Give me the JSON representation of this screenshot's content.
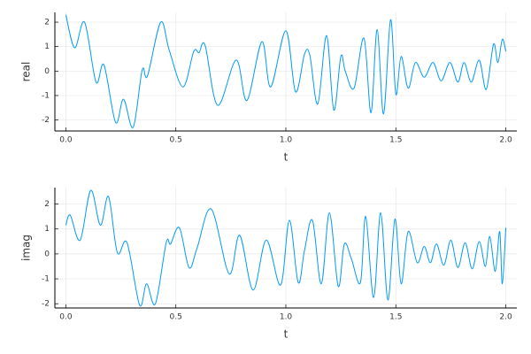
{
  "chart_data": [
    {
      "type": "line",
      "xlabel": "t",
      "ylabel": "real",
      "color": "#009af9",
      "x": [
        0,
        0.04,
        0.085,
        0.137,
        0.173,
        0.226,
        0.262,
        0.306,
        0.347,
        0.371,
        0.431,
        0.47,
        0.532,
        0.581,
        0.605,
        0.633,
        0.69,
        0.774,
        0.823,
        0.891,
        0.931,
        1.0,
        1.044,
        1.085,
        1.109,
        1.145,
        1.185,
        1.218,
        1.25,
        1.27,
        1.31,
        1.355,
        1.387,
        1.415,
        1.444,
        1.476,
        1.5,
        1.524,
        1.556,
        1.589,
        1.629,
        1.669,
        1.706,
        1.746,
        1.782,
        1.81,
        1.843,
        1.879,
        1.911,
        1.944,
        1.964,
        1.984,
        2.0
      ],
      "values": [
        2.3,
        0.95,
        2.0,
        -0.45,
        0.25,
        -2.1,
        -1.15,
        -2.3,
        0.05,
        -0.2,
        2.0,
        0.85,
        -0.65,
        0.8,
        0.75,
        1.05,
        -1.4,
        0.45,
        -1.2,
        1.2,
        -0.65,
        1.65,
        -0.85,
        0.7,
        0.65,
        -1.35,
        1.45,
        -1.6,
        0.6,
        0.0,
        -0.7,
        1.35,
        -1.7,
        1.7,
        -1.75,
        2.1,
        -0.95,
        0.6,
        -0.7,
        0.35,
        -0.25,
        0.35,
        -0.4,
        0.35,
        -0.45,
        0.35,
        -0.45,
        0.45,
        -0.75,
        1.1,
        0.35,
        1.3,
        0.8
      ],
      "xlim": [
        -0.05,
        2.05
      ],
      "ylim": [
        -2.45,
        2.4
      ],
      "xticks": [
        {
          "value": 0,
          "label": "0.0"
        },
        {
          "value": 0.5,
          "label": "0.5"
        },
        {
          "value": 1,
          "label": "1.0"
        },
        {
          "value": 1.5,
          "label": "1.5"
        },
        {
          "value": 2,
          "label": "2.0"
        }
      ],
      "yticks": [
        -2,
        -1,
        0,
        1,
        2
      ],
      "grid": true
    },
    {
      "type": "line",
      "xlabel": "t",
      "ylabel": "imag",
      "color": "#009af9",
      "x": [
        0,
        0.02,
        0.065,
        0.113,
        0.157,
        0.194,
        0.234,
        0.278,
        0.335,
        0.367,
        0.407,
        0.456,
        0.476,
        0.516,
        0.56,
        0.597,
        0.661,
        0.742,
        0.79,
        0.851,
        0.911,
        0.976,
        1.016,
        1.056,
        1.085,
        1.121,
        1.161,
        1.198,
        1.238,
        1.266,
        1.298,
        1.339,
        1.363,
        1.399,
        1.431,
        1.464,
        1.496,
        1.524,
        1.556,
        1.597,
        1.629,
        1.657,
        1.685,
        1.718,
        1.75,
        1.782,
        1.815,
        1.847,
        1.879,
        1.907,
        1.927,
        1.952,
        1.972,
        1.984,
        2.0
      ],
      "values": [
        1.15,
        1.55,
        0.55,
        2.55,
        1.15,
        2.3,
        0.05,
        0.45,
        -2.05,
        -1.2,
        -2.0,
        0.45,
        0.4,
        1.05,
        -0.55,
        0.25,
        1.8,
        -0.8,
        0.75,
        -1.45,
        0.55,
        -1.25,
        1.35,
        -1.15,
        0.15,
        1.35,
        -1.2,
        1.65,
        -1.3,
        0.4,
        -0.2,
        -1.15,
        1.5,
        -1.75,
        1.65,
        -1.85,
        1.4,
        -1.2,
        0.9,
        -0.35,
        0.3,
        -0.35,
        0.4,
        -0.45,
        0.55,
        -0.55,
        0.45,
        -0.6,
        0.5,
        -0.5,
        0.7,
        -0.7,
        0.9,
        -1.2,
        1.05
      ],
      "xlim": [
        -0.05,
        2.05
      ],
      "ylim": [
        -2.17,
        2.66
      ],
      "xticks": [
        {
          "value": 0,
          "label": "0.0"
        },
        {
          "value": 0.5,
          "label": "0.5"
        },
        {
          "value": 1,
          "label": "1.0"
        },
        {
          "value": 1.5,
          "label": "1.5"
        },
        {
          "value": 2,
          "label": "2.0"
        }
      ],
      "yticks": [
        -2,
        -1,
        0,
        1,
        2
      ],
      "grid": true
    }
  ]
}
